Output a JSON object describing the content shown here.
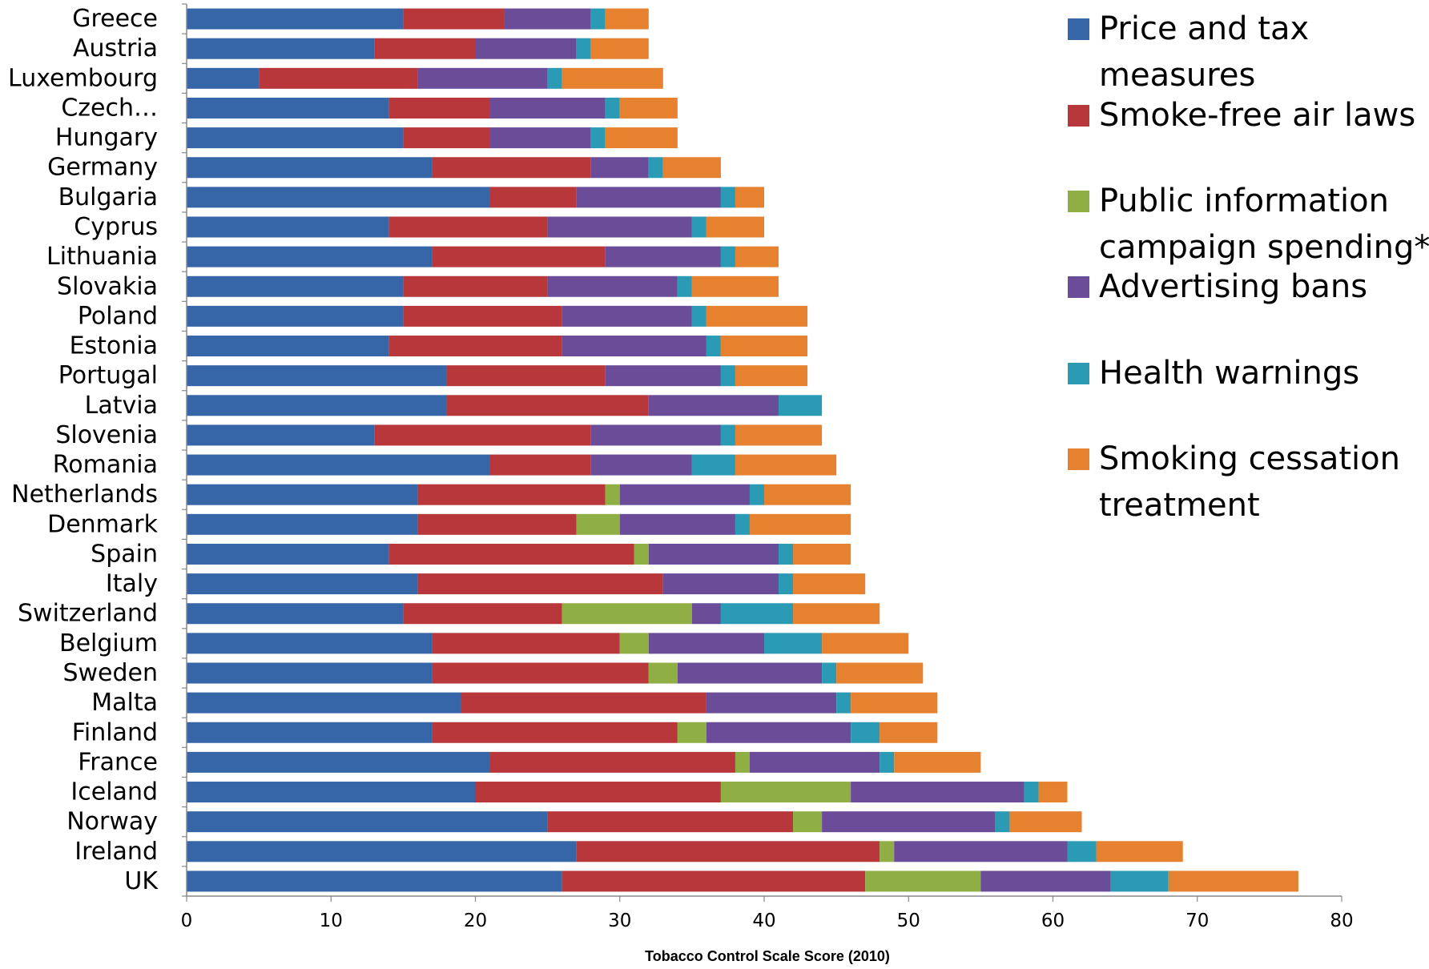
{
  "chart_data": {
    "type": "bar",
    "orientation": "horizontal",
    "stacked": true,
    "title": "",
    "xlabel": "Tobacco Control Scale Score (2010)",
    "ylabel": "",
    "xlim": [
      0,
      80
    ],
    "xticks": [
      0,
      10,
      20,
      30,
      40,
      50,
      60,
      70,
      80
    ],
    "grid": false,
    "legend_position": "right",
    "categories": [
      "Greece",
      "Austria",
      "Luxembourg",
      "Czech…",
      "Hungary",
      "Germany",
      "Bulgaria",
      "Cyprus",
      "Lithuania",
      "Slovakia",
      "Poland",
      "Estonia",
      "Portugal",
      "Latvia",
      "Slovenia",
      "Romania",
      "Netherlands",
      "Denmark",
      "Spain",
      "Italy",
      "Switzerland",
      "Belgium",
      "Sweden",
      "Malta",
      "Finland",
      "France",
      "Iceland",
      "Norway",
      "Ireland",
      "UK"
    ],
    "series": [
      {
        "name": "Price and tax measures",
        "color": "#3766a8",
        "values": [
          15,
          13,
          5,
          14,
          15,
          17,
          21,
          14,
          17,
          15,
          15,
          14,
          18,
          18,
          13,
          21,
          16,
          16,
          14,
          16,
          15,
          17,
          17,
          19,
          17,
          21,
          20,
          25,
          27,
          26
        ]
      },
      {
        "name": "Smoke-free air laws",
        "color": "#b7373a",
        "values": [
          7,
          7,
          11,
          7,
          6,
          11,
          6,
          11,
          12,
          10,
          11,
          12,
          11,
          14,
          15,
          7,
          13,
          11,
          17,
          17,
          11,
          13,
          15,
          17,
          17,
          17,
          17,
          17,
          21,
          21
        ]
      },
      {
        "name": "Public information campaign spending*",
        "color": "#8fae44",
        "values": [
          0,
          0,
          0,
          0,
          0,
          0,
          0,
          0,
          0,
          0,
          0,
          0,
          0,
          0,
          0,
          0,
          1,
          3,
          1,
          0,
          9,
          2,
          2,
          0,
          2,
          1,
          9,
          2,
          1,
          8
        ]
      },
      {
        "name": "Advertising bans",
        "color": "#6a4c99",
        "values": [
          6,
          7,
          9,
          8,
          7,
          4,
          10,
          10,
          8,
          9,
          9,
          10,
          8,
          9,
          9,
          7,
          9,
          8,
          9,
          8,
          2,
          8,
          10,
          9,
          10,
          9,
          12,
          12,
          12,
          9
        ]
      },
      {
        "name": "Health warnings",
        "color": "#2b9bb5",
        "values": [
          1,
          1,
          1,
          1,
          1,
          1,
          1,
          1,
          1,
          1,
          1,
          1,
          1,
          3,
          1,
          3,
          1,
          1,
          1,
          1,
          5,
          4,
          1,
          1,
          2,
          1,
          1,
          1,
          2,
          4
        ]
      },
      {
        "name": "Smoking cessation treatment",
        "color": "#e5812f",
        "values": [
          3,
          4,
          7,
          4,
          5,
          4,
          2,
          4,
          3,
          6,
          7,
          6,
          5,
          0,
          6,
          7,
          6,
          7,
          4,
          5,
          6,
          6,
          6,
          6,
          4,
          6,
          2,
          5,
          6,
          9
        ]
      }
    ],
    "legend": [
      {
        "lines": [
          "Price and tax",
          "measures"
        ],
        "color": "#3766a8"
      },
      {
        "lines": [
          "Smoke-free air laws"
        ],
        "color": "#b7373a"
      },
      {
        "lines": [
          "Public information",
          "campaign spending*"
        ],
        "color": "#8fae44"
      },
      {
        "lines": [
          "Advertising bans"
        ],
        "color": "#6a4c99"
      },
      {
        "lines": [
          "Health warnings"
        ],
        "color": "#2b9bb5"
      },
      {
        "lines": [
          "Smoking cessation",
          "treatment"
        ],
        "color": "#e5812f"
      }
    ]
  }
}
